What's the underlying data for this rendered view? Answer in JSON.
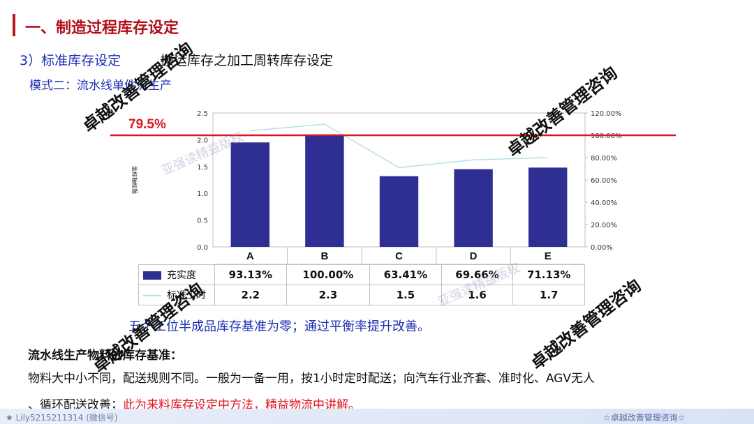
{
  "header": {
    "title": "一、制造过程库存设定",
    "subtitle_left": "3）标准库存设定",
    "subtitle_right": "搬运库存之加工周转库存设定",
    "mode": "模式二：流水线单件流生产"
  },
  "chart_data": {
    "type": "bar",
    "categories": [
      "A",
      "B",
      "C",
      "D",
      "E"
    ],
    "series": [
      {
        "name": "充实度",
        "kind": "bar",
        "axis": "left",
        "values": [
          1.95,
          2.1,
          1.32,
          1.45,
          1.48
        ],
        "labels": [
          "93.13%",
          "100.00%",
          "63.41%",
          "69.66%",
          "71.13%"
        ]
      },
      {
        "name": "标准工时",
        "kind": "line",
        "axis": "right",
        "values": [
          104,
          110,
          71,
          78,
          80
        ],
        "labels": [
          "2.2",
          "2.3",
          "1.5",
          "1.6",
          "1.7"
        ]
      }
    ],
    "ylabel": "坐标轴标题",
    "ylim": [
      0,
      2.5
    ],
    "yticks": [
      "0.0",
      "0.5",
      "1.0",
      "1.5",
      "2.0",
      "2.5"
    ],
    "y2lim": [
      0,
      120
    ],
    "y2ticks": [
      "0.00%",
      "20.00%",
      "40.00%",
      "60.00%",
      "80.00%",
      "100.00%",
      "120.00%"
    ],
    "reference_line": {
      "value_pct": 100,
      "label": "79.5%",
      "color": "#d8161e"
    },
    "bar_color": "#2e2e93",
    "line_color": "#b9dde8"
  },
  "note": "五个工位半成品库存基准为零；通过平衡率提升改善。",
  "section": {
    "heading": "流水线生产物料的库存基准：",
    "para1": "物料大中小不同，配送规则不同。一般为一备一用，按1小时定时配送；向汽车行业齐套、准时化、AGV无人",
    "para2_black": "、循环配送改善；",
    "para2_red": "此为来料库存设定中方法，精益物流中讲解。"
  },
  "footer": {
    "left": "★ Lily5215211314 (微信号)",
    "right": "☆卓越改善管理咨询☆"
  },
  "watermarks": {
    "main": "卓越改善管理咨询",
    "faint": "亚强读精益版权"
  }
}
